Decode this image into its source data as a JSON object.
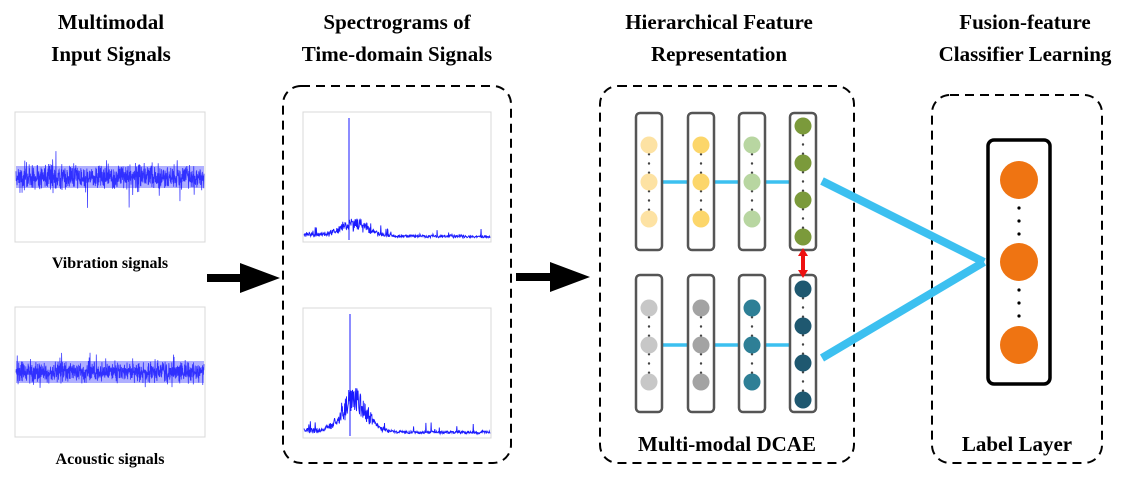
{
  "headers": {
    "col1": [
      "Multimodal",
      "Input Signals"
    ],
    "col2": [
      "Spectrograms of",
      "Time-domain Signals"
    ],
    "col3": [
      "Hierarchical Feature",
      "Representation"
    ],
    "col4": [
      "Fusion-feature",
      "Classifier Learning"
    ]
  },
  "signals": {
    "vibration_label": "Vibration signals",
    "acoustic_label": "Acoustic signals"
  },
  "boxes": {
    "dcae_label": "Multi-modal DCAE",
    "label_layer": "Label Layer"
  },
  "colors": {
    "signal_blue": "#1a1aff",
    "connector_cyan": "#3cc0f0",
    "link_red": "#ee1111",
    "node_orange": "#ef7412",
    "yellow_node": "#fcd66a",
    "yellow_light_node": "#fde2a3",
    "light_green_node": "#b8d6a1",
    "olive_node": "#7b9a3b",
    "light_gray_node": "#c7c7c7",
    "gray_node": "#a3a3a3",
    "teal_node": "#2e7f96",
    "dark_teal_node": "#1f5870"
  }
}
